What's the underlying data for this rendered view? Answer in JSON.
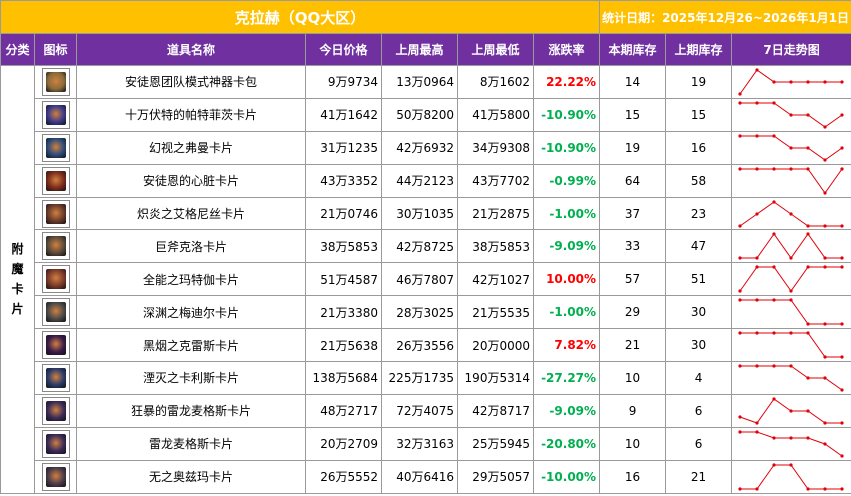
{
  "header": {
    "title": "克拉赫（QQ大区）",
    "date_label": "统计日期：2025年12月26~2026年1月1日"
  },
  "columns": [
    "分类",
    "图标",
    "道具名称",
    "今日价格",
    "上周最高",
    "上周最低",
    "涨跌率",
    "本期库存",
    "上期库存",
    "7日走势图"
  ],
  "category": "附魔卡片",
  "colors": {
    "header_bg": "#ffc000",
    "column_bg": "#7030a0",
    "up": "#ff0000",
    "down": "#00b050",
    "spark": "#e0000a"
  },
  "rows": [
    {
      "name": "安徒恩团队模式神器卡包",
      "today": "9万9734",
      "high": "13万0964",
      "low": "8万1602",
      "change": "22.22%",
      "dir": "up",
      "cur_stock": "14",
      "prev_stock": "19",
      "icon": "card-pack-icon",
      "icon_color": "#8a6b3a",
      "trend": [
        1,
        5,
        3,
        3,
        3,
        3,
        3
      ]
    },
    {
      "name": "十万伏特的帕特菲茨卡片",
      "today": "41万1642",
      "high": "50万8200",
      "low": "41万5800",
      "change": "-10.90%",
      "dir": "down",
      "cur_stock": "15",
      "prev_stock": "15",
      "icon": "card-icon",
      "icon_color": "#3a3a8a",
      "trend": [
        5,
        5,
        5,
        3,
        3,
        1,
        3
      ]
    },
    {
      "name": "幻视之弗曼卡片",
      "today": "31万1235",
      "high": "42万6932",
      "low": "34万9308",
      "change": "-10.90%",
      "dir": "down",
      "cur_stock": "19",
      "prev_stock": "16",
      "icon": "card-icon",
      "icon_color": "#2a4a7a",
      "trend": [
        5,
        5,
        5,
        3,
        3,
        1,
        3
      ]
    },
    {
      "name": "安徒恩的心脏卡片",
      "today": "43万3352",
      "high": "44万2123",
      "low": "43万7702",
      "change": "-0.99%",
      "dir": "down",
      "cur_stock": "64",
      "prev_stock": "58",
      "icon": "card-icon",
      "icon_color": "#7a2a1a",
      "trend": [
        5,
        5,
        5,
        5,
        5,
        1,
        5
      ]
    },
    {
      "name": "炽炎之艾格尼丝卡片",
      "today": "21万0746",
      "high": "30万1035",
      "low": "21万2875",
      "change": "-1.00%",
      "dir": "down",
      "cur_stock": "37",
      "prev_stock": "23",
      "icon": "card-icon",
      "icon_color": "#6a3a2a",
      "trend": [
        1,
        3,
        5,
        3,
        1,
        1,
        1
      ]
    },
    {
      "name": "巨斧克洛卡片",
      "today": "38万5853",
      "high": "42万8725",
      "low": "38万5853",
      "change": "-9.09%",
      "dir": "down",
      "cur_stock": "33",
      "prev_stock": "47",
      "icon": "card-icon",
      "icon_color": "#5a4a3a",
      "trend": [
        1,
        1,
        5,
        1,
        5,
        1,
        1
      ]
    },
    {
      "name": "全能之玛特伽卡片",
      "today": "51万4587",
      "high": "46万7807",
      "low": "42万1027",
      "change": "10.00%",
      "dir": "up",
      "cur_stock": "57",
      "prev_stock": "51",
      "icon": "card-icon",
      "icon_color": "#7a3a2a",
      "trend": [
        1,
        5,
        5,
        1,
        5,
        5,
        5
      ]
    },
    {
      "name": "深渊之梅迪尔卡片",
      "today": "21万3380",
      "high": "28万3025",
      "low": "21万5535",
      "change": "-1.00%",
      "dir": "down",
      "cur_stock": "29",
      "prev_stock": "30",
      "icon": "card-icon",
      "icon_color": "#4a4a4a",
      "trend": [
        5,
        5,
        5,
        5,
        1,
        1,
        1
      ]
    },
    {
      "name": "黑烟之克雷斯卡片",
      "today": "21万5638",
      "high": "26万3556",
      "low": "20万0000",
      "change": "7.82%",
      "dir": "up",
      "cur_stock": "21",
      "prev_stock": "30",
      "icon": "card-icon",
      "icon_color": "#3a1a4a",
      "trend": [
        5,
        5,
        5,
        5,
        5,
        1,
        1
      ]
    },
    {
      "name": "湮灭之卡利斯卡片",
      "today": "138万5684",
      "high": "225万1735",
      "low": "190万5314",
      "change": "-27.27%",
      "dir": "down",
      "cur_stock": "10",
      "prev_stock": "4",
      "icon": "card-icon",
      "icon_color": "#2a3a6a",
      "trend": [
        5,
        5,
        5,
        5,
        3,
        3,
        1
      ]
    },
    {
      "name": "狂暴的雷龙麦格斯卡片",
      "today": "48万2717",
      "high": "72万4075",
      "low": "42万8717",
      "change": "-9.09%",
      "dir": "down",
      "cur_stock": "9",
      "prev_stock": "6",
      "icon": "card-icon",
      "icon_color": "#3a2a5a",
      "trend": [
        2,
        1,
        5,
        3,
        3,
        1,
        1
      ]
    },
    {
      "name": "雷龙麦格斯卡片",
      "today": "20万2709",
      "high": "32万3163",
      "low": "25万5945",
      "change": "-20.80%",
      "dir": "down",
      "cur_stock": "10",
      "prev_stock": "6",
      "icon": "card-icon",
      "icon_color": "#3a2a5a",
      "trend": [
        5,
        5,
        4,
        4,
        4,
        3,
        1
      ]
    },
    {
      "name": "无之奥兹玛卡片",
      "today": "26万5552",
      "high": "40万6416",
      "low": "29万5057",
      "change": "-10.00%",
      "dir": "down",
      "cur_stock": "16",
      "prev_stock": "21",
      "icon": "card-icon",
      "icon_color": "#4a3a4a",
      "trend": [
        1,
        1,
        5,
        5,
        1,
        1,
        1
      ]
    }
  ]
}
